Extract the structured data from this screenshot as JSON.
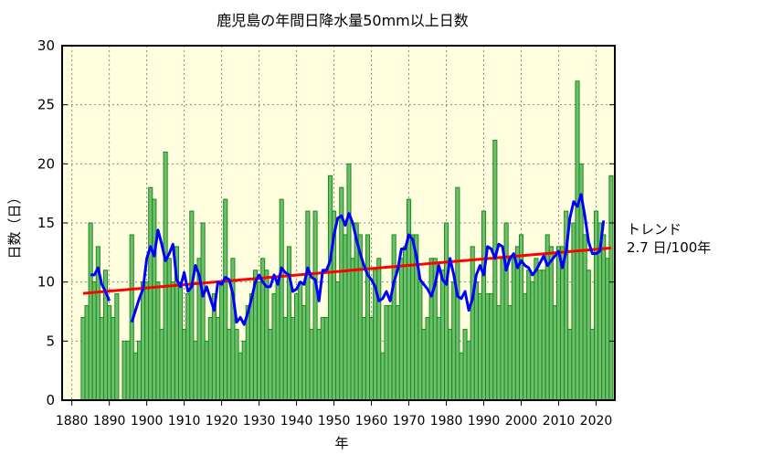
{
  "chart_data": {
    "type": "bar",
    "title": "鹿児島の年間日降水量50mm以上日数",
    "xlabel": "年",
    "ylabel": "日数（日）",
    "xlim": [
      1877.4,
      2025
    ],
    "ylim": [
      0,
      30
    ],
    "grid": true,
    "x_ticks": [
      1880,
      1890,
      1900,
      1910,
      1920,
      1930,
      1940,
      1950,
      1960,
      1970,
      1980,
      1990,
      2000,
      2010,
      2020
    ],
    "y_ticks": [
      0,
      5,
      10,
      15,
      20,
      25,
      30
    ],
    "years_start": 1883,
    "values": [
      7,
      8,
      15,
      10,
      13,
      7,
      11,
      8,
      7,
      9,
      null,
      5,
      5,
      14,
      4,
      5,
      10,
      10,
      18,
      17,
      10,
      6,
      21,
      12,
      10,
      13,
      10,
      6,
      9,
      16,
      5,
      12,
      15,
      5,
      7,
      9,
      7,
      10,
      17,
      6,
      12,
      6,
      4,
      5,
      8,
      9,
      11,
      10,
      12,
      11,
      6,
      9,
      10,
      17,
      7,
      13,
      7,
      9,
      10,
      8,
      16,
      6,
      16,
      6,
      7,
      7,
      19,
      16,
      10,
      18,
      14,
      20,
      12,
      15,
      14,
      7,
      14,
      7,
      11,
      12,
      4,
      8,
      8,
      14,
      8,
      12,
      13,
      17,
      14,
      14,
      10,
      6,
      7,
      12,
      12,
      7,
      11,
      15,
      6,
      10,
      18,
      4,
      6,
      5,
      13,
      10,
      9,
      16,
      9,
      9,
      22,
      8,
      12,
      15,
      8,
      12,
      13,
      14,
      9,
      11,
      10,
      12,
      11,
      11,
      14,
      13,
      8,
      13,
      13,
      16,
      6,
      15,
      27,
      20,
      14,
      11,
      6,
      16,
      15,
      14,
      12,
      19
    ],
    "moving_average_window": 5,
    "trend": {
      "label": "トレンド",
      "value": "2.7 日/100年"
    },
    "colors": {
      "background": "#ffffe0",
      "bar_fill": "#6dbf6d",
      "bar_edge": "#1a8a1a",
      "moving_average": "#0000ff",
      "trend": "#ff0000"
    }
  }
}
